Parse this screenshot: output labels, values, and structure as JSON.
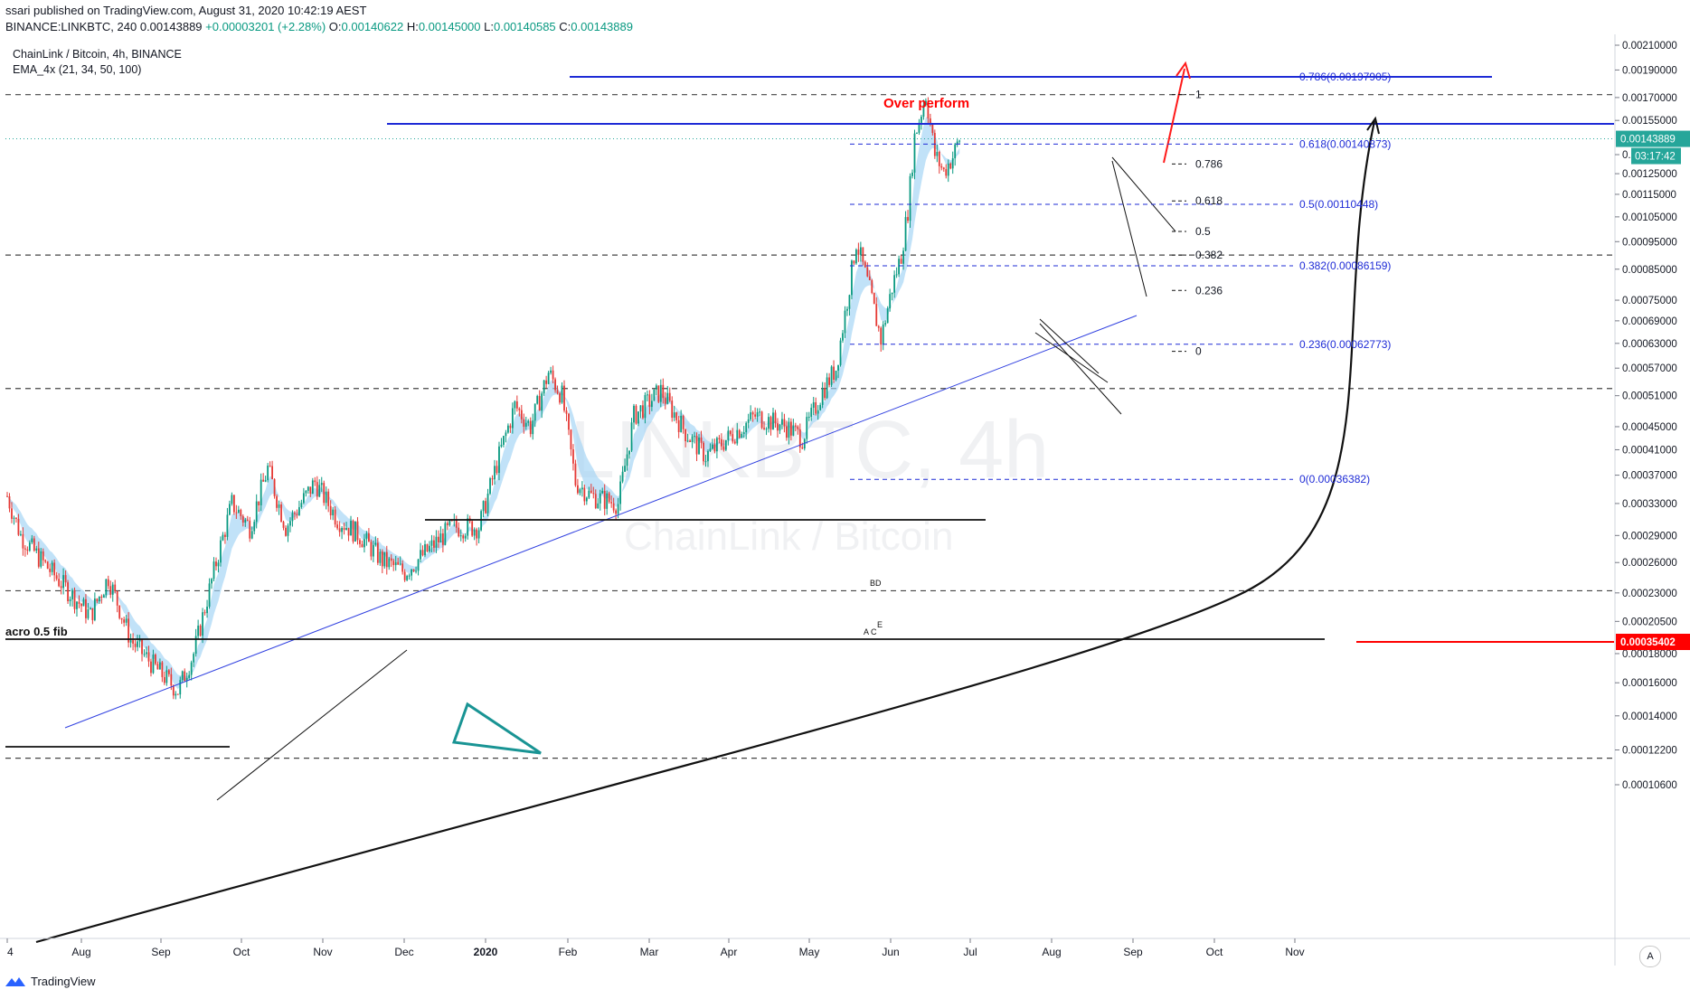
{
  "header": {
    "published_line": "ssari published on TradingView.com, August 31, 2020 10:42:19 AEST",
    "symbol_interval": "BINANCE:LINKBTC, 240",
    "last": "0.00143889",
    "change": "+0.00003201 (+2.28%)",
    "o_label": "O:",
    "o_val": "0.00140622",
    "h_label": "H:",
    "h_val": "0.00145000",
    "l_label": "L:",
    "l_val": "0.00140585",
    "c_label": "C:",
    "c_val": "0.00143889"
  },
  "legend": {
    "title": "ChainLink / Bitcoin, 4h, BINANCE",
    "indicator": "EMA_4x (21, 34, 50, 100)"
  },
  "watermark": {
    "line1": "LINKBTC, 4h",
    "line2": "ChainLink / Bitcoin"
  },
  "footer": {
    "brand": "TradingView",
    "auto_label": "A"
  },
  "colors": {
    "up": "#089981",
    "down": "#e53935",
    "fib_blue": "#1e2bd6",
    "ema_band": "#9fd3f5",
    "red_line": "#ff0000"
  },
  "chart_data": {
    "type": "candlestick",
    "title": "ChainLink / Bitcoin, 4h, BINANCE",
    "xlabel": "",
    "ylabel": "",
    "x_ticks": [
      "4",
      "Aug",
      "Sep",
      "Oct",
      "Nov",
      "Dec",
      "2020",
      "Feb",
      "Mar",
      "Apr",
      "May",
      "Jun",
      "Jul",
      "Aug",
      "Sep",
      "Oct",
      "Nov"
    ],
    "y_ticks": [
      "0.00210000",
      "0.00190000",
      "0.00170000",
      "0.00155000",
      "0.00135000",
      "0.00125000",
      "0.00115000",
      "0.00105000",
      "0.00095000",
      "0.00085000",
      "0.00075000",
      "0.00069000",
      "0.00063000",
      "0.00057000",
      "0.00051000",
      "0.00045000",
      "0.00041000",
      "0.00037000",
      "0.00033000",
      "0.00029000",
      "0.00026000",
      "0.00023000",
      "0.00020500",
      "0.00018000",
      "0.00016000",
      "0.00014000",
      "0.00012200",
      "0.00010600"
    ],
    "y_scale": "log",
    "ylim": [
      0.0001,
      0.00215
    ],
    "price_path": [
      [
        "2019-07-04",
        0.00034
      ],
      [
        "2019-07-10",
        0.00029
      ],
      [
        "2019-07-20",
        0.00026
      ],
      [
        "2019-08-01",
        0.00023
      ],
      [
        "2019-08-10",
        0.00021
      ],
      [
        "2019-08-18",
        0.000245
      ],
      [
        "2019-08-28",
        0.00019
      ],
      [
        "2019-09-08",
        0.00017
      ],
      [
        "2019-09-18",
        0.000155
      ],
      [
        "2019-09-25",
        0.00018
      ],
      [
        "2019-10-05",
        0.00026
      ],
      [
        "2019-10-12",
        0.00033
      ],
      [
        "2019-10-20",
        0.0003
      ],
      [
        "2019-10-28",
        0.00038
      ],
      [
        "2019-11-05",
        0.0003
      ],
      [
        "2019-11-18",
        0.00036
      ],
      [
        "2019-11-28",
        0.00031
      ],
      [
        "2019-12-08",
        0.00029
      ],
      [
        "2019-12-18",
        0.000262
      ],
      [
        "2019-12-28",
        0.00025
      ],
      [
        "2020-01-06",
        0.00027
      ],
      [
        "2020-01-18",
        0.0003
      ],
      [
        "2020-01-30",
        0.0003
      ],
      [
        "2020-02-08",
        0.0004
      ],
      [
        "2020-02-15",
        0.00049
      ],
      [
        "2020-02-22",
        0.00045
      ],
      [
        "2020-03-01",
        0.00056
      ],
      [
        "2020-03-07",
        0.00051
      ],
      [
        "2020-03-13",
        0.00036
      ],
      [
        "2020-03-20",
        0.00034
      ],
      [
        "2020-04-01",
        0.00033
      ],
      [
        "2020-04-08",
        0.00047
      ],
      [
        "2020-04-20",
        0.00052
      ],
      [
        "2020-05-01",
        0.00044
      ],
      [
        "2020-05-10",
        0.0004
      ],
      [
        "2020-05-20",
        0.00043
      ],
      [
        "2020-06-01",
        0.00047
      ],
      [
        "2020-06-15",
        0.00045
      ],
      [
        "2020-06-22",
        0.00043
      ],
      [
        "2020-07-01",
        0.00052
      ],
      [
        "2020-07-07",
        0.00057
      ],
      [
        "2020-07-12",
        0.00075
      ],
      [
        "2020-07-16",
        0.00095
      ],
      [
        "2020-07-22",
        0.00078
      ],
      [
        "2020-07-27",
        0.00064
      ],
      [
        "2020-08-01",
        0.00079
      ],
      [
        "2020-08-05",
        0.0009
      ],
      [
        "2020-08-08",
        0.00108
      ],
      [
        "2020-08-11",
        0.00145
      ],
      [
        "2020-08-16",
        0.00172
      ],
      [
        "2020-08-20",
        0.00135
      ],
      [
        "2020-08-24",
        0.00126
      ],
      [
        "2020-08-28",
        0.00134
      ],
      [
        "2020-08-31",
        0.00143889
      ]
    ],
    "current_price": "0.00143889",
    "countdown": "03:17:42",
    "red_level": "0.00035402",
    "fib_right": [
      {
        "label": "0.786(0.00197905)",
        "value": 0.00197905
      },
      {
        "label": "0.618(0.00140873)",
        "value": 0.00140873
      },
      {
        "label": "0.5(0.00110448)",
        "value": 0.00110448
      },
      {
        "label": "0.382(0.00086159)",
        "value": 0.00086159
      },
      {
        "label": "0.236(0.00062773)",
        "value": 0.00062773
      },
      {
        "label": "0(0.00036382)",
        "value": 0.00036382
      }
    ],
    "fib_left": [
      {
        "label": "1",
        "value": 0.00172
      },
      {
        "label": "0.786",
        "value": 0.0013
      },
      {
        "label": "0.618",
        "value": 0.00112
      },
      {
        "label": "0.5",
        "value": 0.00099
      },
      {
        "label": "0.382",
        "value": 0.0009
      },
      {
        "label": "0.236",
        "value": 0.00078
      },
      {
        "label": "0",
        "value": 0.00061
      }
    ],
    "annotations": {
      "over_perform": "Over perform",
      "macro_fib": "acro 0.5 fib",
      "bd": "BD",
      "ace": "A C",
      "e": "E"
    },
    "dashed_levels": [
      0.00172,
      0.0009,
      0.000525,
      0.000232,
      0.000118
    ],
    "legend_placement": "top-left"
  }
}
